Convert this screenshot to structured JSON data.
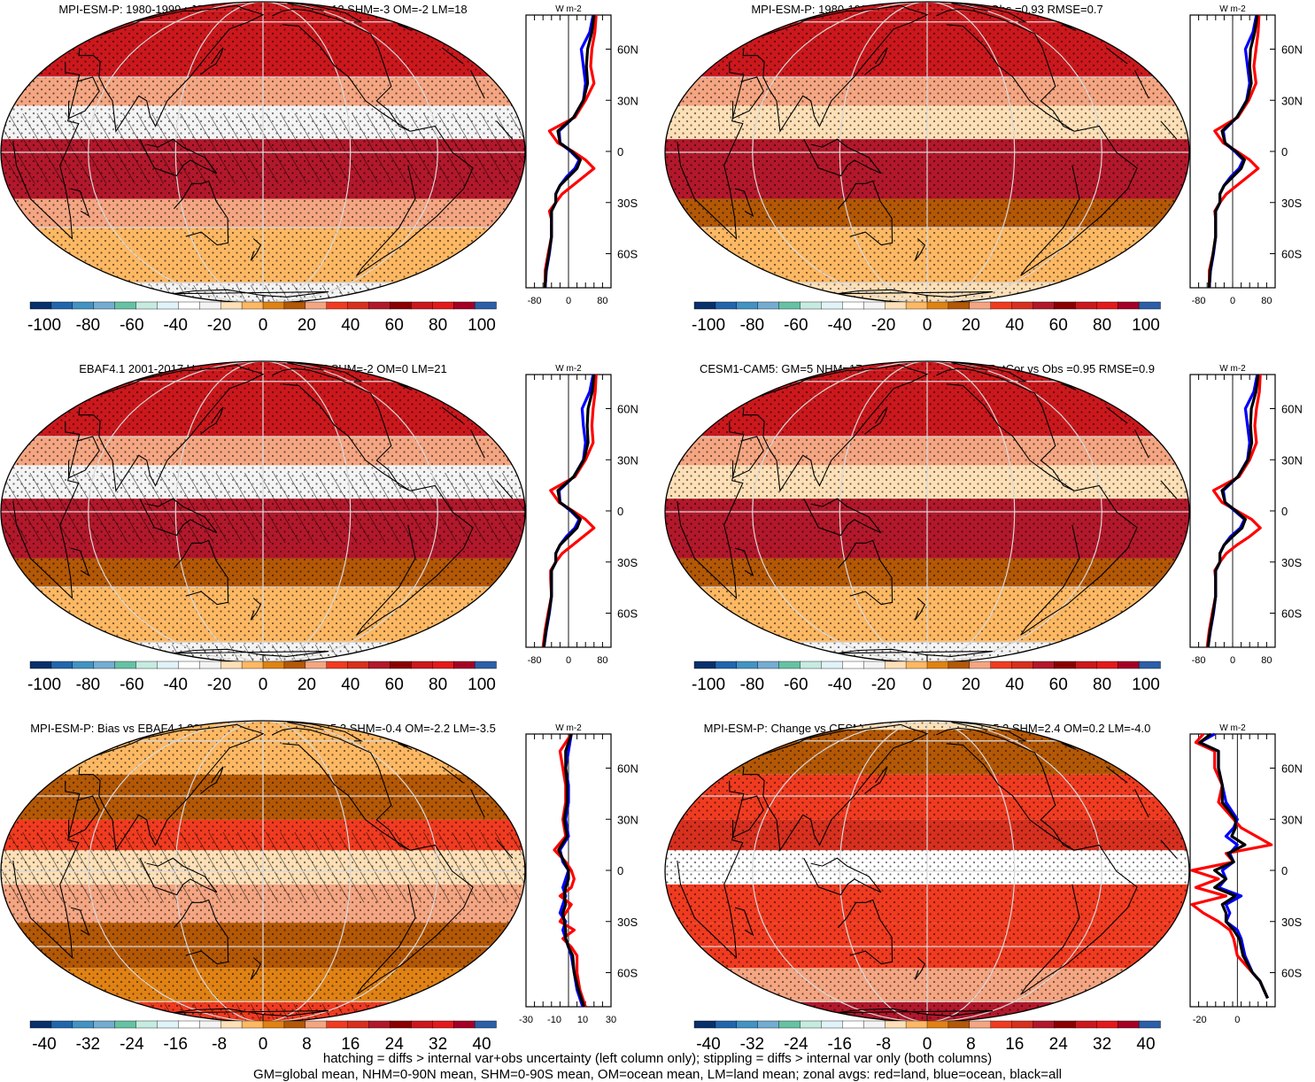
{
  "palette": {
    "levels": [
      "#08306b",
      "#2166ac",
      "#4393c3",
      "#74add1",
      "#66c2a4",
      "#c6ebe0",
      "#e0f3f8",
      "#ffffff",
      "#f4f4f4",
      "#fde0b7",
      "#fdb863",
      "#e08214",
      "#b35806",
      "#f4a582",
      "#f03b20",
      "#d7301f",
      "#b2182b",
      "#8b0000",
      "#cb181d",
      "#e31a1c",
      "#a50026",
      "#2c5fa8"
    ],
    "land_line": "#000000",
    "grid_line": "#d9d9d9",
    "series_land": "#ff0000",
    "series_ocean": "#0000ff",
    "series_all": "#000000"
  },
  "chart_data": [
    {
      "type": "heatmap",
      "id": "p1",
      "title": "MPI-ESM-P: 1980-1999 : JJA-DJF : rlut GM=4 NHM=12 SHM=-3 OM=-2 LM=18",
      "colorbar_ticks": [
        "-100",
        "-80",
        "-60",
        "-40",
        "-20",
        "0",
        "20",
        "40",
        "60",
        "80",
        "100"
      ],
      "colorbar_range": [
        -110,
        110
      ],
      "hatched": true,
      "bands": [
        {
          "lat": [
            70,
            90
          ],
          "value": 70
        },
        {
          "lat": [
            30,
            70
          ],
          "value": 75
        },
        {
          "lat": [
            18,
            30
          ],
          "value": 20
        },
        {
          "lat": [
            5,
            18
          ],
          "value": -25
        },
        {
          "lat": [
            -18,
            5
          ],
          "value": 55
        },
        {
          "lat": [
            -30,
            -18
          ],
          "value": 20
        },
        {
          "lat": [
            -60,
            -30
          ],
          "value": -5
        },
        {
          "lat": [
            -90,
            -60
          ],
          "value": -25
        }
      ],
      "zonal": {
        "unit": "W m-2",
        "xlim": [
          -100,
          100
        ],
        "xticks": [
          "-80",
          "0",
          "80"
        ],
        "yticks": [
          "60N",
          "30N",
          "0",
          "30S",
          "60S"
        ],
        "lat": [
          80,
          70,
          60,
          50,
          40,
          30,
          20,
          12,
          5,
          0,
          -5,
          -10,
          -15,
          -20,
          -25,
          -30,
          -35,
          -40,
          -50,
          -60,
          -70,
          -80
        ],
        "land": [
          65,
          62,
          55,
          52,
          60,
          40,
          15,
          -45,
          -25,
          10,
          40,
          60,
          35,
          10,
          -15,
          -30,
          -45,
          -40,
          -40,
          -48,
          -55,
          -55
        ],
        "ocean": [
          58,
          50,
          30,
          35,
          40,
          35,
          12,
          -22,
          -20,
          5,
          25,
          15,
          -5,
          -20,
          -30,
          -30,
          -40,
          -40,
          -40,
          -45,
          -52,
          -55
        ],
        "all": [
          60,
          55,
          45,
          42,
          45,
          35,
          12,
          -25,
          -20,
          8,
          28,
          20,
          0,
          -20,
          -30,
          -30,
          -40,
          -40,
          -40,
          -46,
          -53,
          -55
        ]
      }
    },
    {
      "type": "heatmap",
      "id": "p2",
      "title": "MPI-ESM-P: 1980-1999 : JJA-DJF : PatCor vs Obs =0.93 RMSE=0.7",
      "colorbar_ticks": [
        "-100",
        "-80",
        "-60",
        "-40",
        "-20",
        "0",
        "20",
        "40",
        "60",
        "80",
        "100"
      ],
      "colorbar_range": [
        -110,
        110
      ],
      "hatched": false,
      "bands": [
        {
          "lat": [
            70,
            90
          ],
          "value": 70
        },
        {
          "lat": [
            30,
            70
          ],
          "value": 75
        },
        {
          "lat": [
            18,
            30
          ],
          "value": 20
        },
        {
          "lat": [
            5,
            18
          ],
          "value": -20
        },
        {
          "lat": [
            -18,
            5
          ],
          "value": 55
        },
        {
          "lat": [
            -30,
            -18
          ],
          "value": 15
        },
        {
          "lat": [
            -60,
            -30
          ],
          "value": -5
        },
        {
          "lat": [
            -90,
            -60
          ],
          "value": -20
        }
      ],
      "zonal": {
        "unit": "W m-2",
        "xlim": [
          -100,
          100
        ],
        "xticks": [
          "-80",
          "0",
          "80"
        ],
        "yticks": [
          "60N",
          "30N",
          "0",
          "30S",
          "60S"
        ],
        "lat": [
          80,
          70,
          60,
          50,
          40,
          30,
          20,
          12,
          5,
          0,
          -5,
          -10,
          -15,
          -20,
          -25,
          -30,
          -35,
          -40,
          -50,
          -60,
          -70,
          -80
        ],
        "land": [
          62,
          60,
          55,
          50,
          55,
          38,
          12,
          -42,
          -22,
          10,
          40,
          60,
          35,
          10,
          -15,
          -30,
          -42,
          -40,
          -40,
          -46,
          -55,
          -55
        ],
        "ocean": [
          56,
          48,
          30,
          35,
          40,
          33,
          10,
          -22,
          -18,
          5,
          25,
          15,
          -5,
          -20,
          -30,
          -30,
          -40,
          -40,
          -40,
          -45,
          -52,
          -55
        ],
        "all": [
          58,
          52,
          42,
          40,
          44,
          34,
          10,
          -25,
          -18,
          8,
          28,
          20,
          0,
          -20,
          -30,
          -30,
          -40,
          -40,
          -40,
          -46,
          -53,
          -55
        ]
      }
    },
    {
      "type": "heatmap",
      "id": "p3",
      "title": "EBAF4.1 2001-2017 Uncer=5%: GM=6 NHM=17 SHM=-2 OM=0 LM=21",
      "colorbar_ticks": [
        "-100",
        "-80",
        "-60",
        "-40",
        "-20",
        "0",
        "20",
        "40",
        "60",
        "80",
        "100"
      ],
      "colorbar_range": [
        -110,
        110
      ],
      "hatched": true,
      "bands": [
        {
          "lat": [
            70,
            90
          ],
          "value": 70
        },
        {
          "lat": [
            30,
            70
          ],
          "value": 75
        },
        {
          "lat": [
            18,
            30
          ],
          "value": 20
        },
        {
          "lat": [
            5,
            18
          ],
          "value": -25
        },
        {
          "lat": [
            -18,
            5
          ],
          "value": 50
        },
        {
          "lat": [
            -30,
            -18
          ],
          "value": 15
        },
        {
          "lat": [
            -60,
            -30
          ],
          "value": -5
        },
        {
          "lat": [
            -90,
            -60
          ],
          "value": -30
        }
      ],
      "zonal": {
        "unit": "W m-2",
        "xlim": [
          -100,
          100
        ],
        "xticks": [
          "-80",
          "0",
          "80"
        ],
        "yticks": [
          "60N",
          "30N",
          "0",
          "30S",
          "60S"
        ],
        "lat": [
          80,
          70,
          60,
          50,
          40,
          30,
          20,
          12,
          5,
          0,
          -5,
          -10,
          -15,
          -20,
          -25,
          -30,
          -35,
          -40,
          -50,
          -60,
          -70,
          -80
        ],
        "land": [
          65,
          63,
          58,
          55,
          58,
          40,
          15,
          -42,
          -22,
          10,
          40,
          60,
          35,
          10,
          -15,
          -30,
          -42,
          -42,
          -40,
          -48,
          -55,
          -60
        ],
        "ocean": [
          58,
          50,
          32,
          35,
          40,
          35,
          12,
          -22,
          -20,
          5,
          25,
          15,
          -5,
          -20,
          -30,
          -30,
          -40,
          -40,
          -40,
          -45,
          -52,
          -58
        ],
        "all": [
          60,
          56,
          46,
          44,
          46,
          36,
          12,
          -25,
          -20,
          8,
          28,
          20,
          0,
          -20,
          -30,
          -30,
          -40,
          -40,
          -40,
          -46,
          -53,
          -58
        ]
      }
    },
    {
      "type": "heatmap",
      "id": "p4",
      "title": "CESM1-CAM5: GM=5 NHM=17 SHM=-5 OM=-2 LM=22 PatCor vs Obs =0.95 RMSE=0.9",
      "colorbar_ticks": [
        "-100",
        "-80",
        "-60",
        "-40",
        "-20",
        "0",
        "20",
        "40",
        "60",
        "80",
        "100"
      ],
      "colorbar_range": [
        -110,
        110
      ],
      "hatched": false,
      "bands": [
        {
          "lat": [
            70,
            90
          ],
          "value": 70
        },
        {
          "lat": [
            30,
            70
          ],
          "value": 75
        },
        {
          "lat": [
            18,
            30
          ],
          "value": 20
        },
        {
          "lat": [
            5,
            18
          ],
          "value": -20
        },
        {
          "lat": [
            -18,
            5
          ],
          "value": 55
        },
        {
          "lat": [
            -30,
            -18
          ],
          "value": 15
        },
        {
          "lat": [
            -60,
            -30
          ],
          "value": -5
        },
        {
          "lat": [
            -90,
            -60
          ],
          "value": -25
        }
      ],
      "zonal": {
        "unit": "W m-2",
        "xlim": [
          -100,
          100
        ],
        "xticks": [
          "-80",
          "0",
          "80"
        ],
        "yticks": [
          "60N",
          "30N",
          "0",
          "30S",
          "60S"
        ],
        "lat": [
          80,
          70,
          60,
          50,
          40,
          30,
          20,
          12,
          5,
          0,
          -5,
          -10,
          -15,
          -20,
          -25,
          -30,
          -35,
          -40,
          -50,
          -60,
          -70,
          -80
        ],
        "land": [
          65,
          63,
          56,
          52,
          56,
          40,
          15,
          -45,
          -25,
          10,
          45,
          65,
          40,
          10,
          -15,
          -30,
          -42,
          -40,
          -40,
          -48,
          -55,
          -60
        ],
        "ocean": [
          58,
          50,
          30,
          35,
          40,
          35,
          12,
          -22,
          -18,
          5,
          28,
          18,
          -5,
          -20,
          -30,
          -30,
          -40,
          -40,
          -40,
          -45,
          -52,
          -58
        ],
        "all": [
          60,
          55,
          44,
          42,
          45,
          36,
          12,
          -25,
          -18,
          8,
          30,
          22,
          0,
          -20,
          -30,
          -30,
          -40,
          -40,
          -40,
          -46,
          -53,
          -58
        ]
      }
    },
    {
      "type": "heatmap",
      "id": "p5",
      "title": "MPI-ESM-P: Bias vs EBAF4.1 2001-2017 GM=-2.6 NHM=-5.3 SHM=-0.4 OM=-2.2 LM=-3.5",
      "colorbar_ticks": [
        "-40",
        "-32",
        "-24",
        "-16",
        "-8",
        "0",
        "8",
        "16",
        "24",
        "32",
        "40"
      ],
      "colorbar_range": [
        -44,
        44
      ],
      "hatched": true,
      "bands": [
        {
          "lat": [
            70,
            90
          ],
          "value": -4
        },
        {
          "lat": [
            40,
            70
          ],
          "value": -2
        },
        {
          "lat": [
            20,
            40
          ],
          "value": 6
        },
        {
          "lat": [
            8,
            20
          ],
          "value": 14
        },
        {
          "lat": [
            -5,
            8
          ],
          "value": -8
        },
        {
          "lat": [
            -20,
            -5
          ],
          "value": 10
        },
        {
          "lat": [
            -40,
            -20
          ],
          "value": 4
        },
        {
          "lat": [
            -60,
            -40
          ],
          "value": 2
        },
        {
          "lat": [
            -90,
            -60
          ],
          "value": 14
        }
      ],
      "zonal": {
        "unit": "W m-2",
        "xlim": [
          -30,
          30
        ],
        "xticks": [
          "-30",
          "-10",
          "10",
          "30"
        ],
        "yticks": [
          "60N",
          "30N",
          "0",
          "30S",
          "60S"
        ],
        "lat": [
          80,
          70,
          60,
          50,
          40,
          30,
          20,
          12,
          5,
          0,
          -5,
          -10,
          -15,
          -20,
          -25,
          -30,
          -35,
          -40,
          -45,
          -50,
          -60,
          -70,
          -80
        ],
        "land": [
          2,
          -6,
          -4,
          -2,
          -2,
          -4,
          -2,
          -10,
          -2,
          2,
          4,
          2,
          -6,
          2,
          -2,
          -6,
          4,
          -4,
          2,
          6,
          6,
          8,
          12
        ],
        "ocean": [
          2,
          0,
          -2,
          0,
          0,
          -2,
          0,
          -6,
          -4,
          0,
          -2,
          -4,
          -2,
          -4,
          -6,
          -2,
          -4,
          -2,
          0,
          2,
          4,
          6,
          10
        ],
        "all": [
          2,
          -2,
          -2,
          -1,
          -1,
          -3,
          -1,
          -7,
          -3,
          0,
          0,
          -2,
          -3,
          -2,
          -4,
          -3,
          -2,
          -2,
          0,
          3,
          4,
          7,
          11
        ]
      }
    },
    {
      "type": "heatmap",
      "id": "p6",
      "title": "MPI-ESM-P: Change vs CESM1-CAM5 GM=-1.0 NHM=-5.2 SHM=2.4 OM=0.2 LM=-4.0",
      "colorbar_ticks": [
        "-40",
        "-32",
        "-24",
        "-16",
        "-8",
        "0",
        "8",
        "16",
        "24",
        "32",
        "40"
      ],
      "colorbar_range": [
        -44,
        44
      ],
      "hatched": false,
      "bands": [
        {
          "lat": [
            70,
            90
          ],
          "value": -8
        },
        {
          "lat": [
            40,
            70
          ],
          "value": 4
        },
        {
          "lat": [
            20,
            40
          ],
          "value": 12
        },
        {
          "lat": [
            8,
            20
          ],
          "value": 18
        },
        {
          "lat": [
            -5,
            8
          ],
          "value": -16
        },
        {
          "lat": [
            -20,
            -5
          ],
          "value": 16
        },
        {
          "lat": [
            -40,
            -20
          ],
          "value": 12
        },
        {
          "lat": [
            -60,
            -40
          ],
          "value": 8
        },
        {
          "lat": [
            -90,
            -60
          ],
          "value": 22
        }
      ],
      "zonal": {
        "unit": "W m-2",
        "xlim": [
          -25,
          20
        ],
        "xticks": [
          "-20",
          "0"
        ],
        "yticks": [
          "60N",
          "30N",
          "0",
          "30S",
          "60S"
        ],
        "lat": [
          80,
          75,
          70,
          60,
          50,
          40,
          30,
          25,
          20,
          15,
          10,
          5,
          0,
          -5,
          -10,
          -15,
          -20,
          -25,
          -30,
          -35,
          -40,
          -50,
          -60,
          -65,
          -70,
          -75
        ],
        "land": [
          -18,
          -22,
          -12,
          -12,
          -8,
          -10,
          -2,
          2,
          10,
          18,
          -6,
          -2,
          -24,
          -10,
          -22,
          -6,
          -24,
          -18,
          -10,
          -4,
          -2,
          0,
          8,
          12,
          14,
          16
        ],
        "ocean": [
          -12,
          -20,
          -10,
          -10,
          -8,
          -6,
          0,
          -2,
          -6,
          0,
          -4,
          -2,
          -8,
          -6,
          -10,
          2,
          -6,
          -4,
          -6,
          0,
          2,
          4,
          8,
          12,
          14,
          16
        ],
        "all": [
          -14,
          -20,
          -10,
          -10,
          -8,
          -8,
          -1,
          -1,
          -3,
          4,
          -5,
          -2,
          -12,
          -6,
          -12,
          -1,
          -8,
          -6,
          -6,
          -2,
          1,
          3,
          8,
          12,
          14,
          16
        ]
      }
    }
  ],
  "footer": {
    "line1": "hatching = diffs > internal var+obs uncertainty (left column only); stippling = diffs > internal var only (both columns)",
    "line2": "GM=global mean, NHM=0-90N mean, SHM=0-90S mean, OM=ocean mean, LM=land mean; zonal avgs: red=land, blue=ocean, black=all"
  }
}
